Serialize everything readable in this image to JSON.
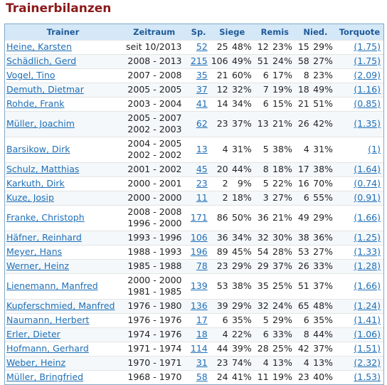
{
  "page_title": "Trainerbilanzen",
  "columns": {
    "trainer": "Trainer",
    "zeitraum": "Zeitraum",
    "sp": "Sp.",
    "siege": "Siege",
    "remis": "Remis",
    "nied": "Nied.",
    "torquote": "Torquote"
  },
  "rows": [
    {
      "name": "Heine, Karsten",
      "periods": [
        "seit 10/2013"
      ],
      "sp": "52",
      "siege": "25",
      "siege_pct": "48%",
      "remis": "12",
      "remis_pct": "23%",
      "nied": "15",
      "nied_pct": "29%",
      "torquote": "(1.75)"
    },
    {
      "name": "Schädlich, Gerd",
      "periods": [
        "2008 - 2013"
      ],
      "sp": "215",
      "siege": "106",
      "siege_pct": "49%",
      "remis": "51",
      "remis_pct": "24%",
      "nied": "58",
      "nied_pct": "27%",
      "torquote": "(1.75)"
    },
    {
      "name": "Vogel, Tino",
      "periods": [
        "2007 - 2008"
      ],
      "sp": "35",
      "siege": "21",
      "siege_pct": "60%",
      "remis": "6",
      "remis_pct": "17%",
      "nied": "8",
      "nied_pct": "23%",
      "torquote": "(2.09)"
    },
    {
      "name": "Demuth, Dietmar",
      "periods": [
        "2005 - 2005"
      ],
      "sp": "37",
      "siege": "12",
      "siege_pct": "32%",
      "remis": "7",
      "remis_pct": "19%",
      "nied": "18",
      "nied_pct": "49%",
      "torquote": "(1.16)"
    },
    {
      "name": "Rohde, Frank",
      "periods": [
        "2003 - 2004"
      ],
      "sp": "41",
      "siege": "14",
      "siege_pct": "34%",
      "remis": "6",
      "remis_pct": "15%",
      "nied": "21",
      "nied_pct": "51%",
      "torquote": "(0.85)"
    },
    {
      "name": "Müller, Joachim",
      "periods": [
        "2005 - 2007",
        "2002 - 2003"
      ],
      "sp": "62",
      "siege": "23",
      "siege_pct": "37%",
      "remis": "13",
      "remis_pct": "21%",
      "nied": "26",
      "nied_pct": "42%",
      "torquote": "(1.35)"
    },
    {
      "name": "Barsikow, Dirk",
      "periods": [
        "2004 - 2005",
        "2002 - 2002"
      ],
      "sp": "13",
      "siege": "4",
      "siege_pct": "31%",
      "remis": "5",
      "remis_pct": "38%",
      "nied": "4",
      "nied_pct": "31%",
      "torquote": "(1)"
    },
    {
      "name": "Schulz, Matthias",
      "periods": [
        "2001 - 2002"
      ],
      "sp": "45",
      "siege": "20",
      "siege_pct": "44%",
      "remis": "8",
      "remis_pct": "18%",
      "nied": "17",
      "nied_pct": "38%",
      "torquote": "(1.64)"
    },
    {
      "name": "Karkuth, Dirk",
      "periods": [
        "2000 - 2001"
      ],
      "sp": "23",
      "siege": "2",
      "siege_pct": "9%",
      "remis": "5",
      "remis_pct": "22%",
      "nied": "16",
      "nied_pct": "70%",
      "torquote": "(0.74)"
    },
    {
      "name": "Kuze, Josip",
      "periods": [
        "2000 - 2000"
      ],
      "sp": "11",
      "siege": "2",
      "siege_pct": "18%",
      "remis": "3",
      "remis_pct": "27%",
      "nied": "6",
      "nied_pct": "55%",
      "torquote": "(0.91)"
    },
    {
      "name": "Franke, Christoph",
      "periods": [
        "2008 - 2008",
        "1996 - 2000"
      ],
      "sp": "171",
      "siege": "86",
      "siege_pct": "50%",
      "remis": "36",
      "remis_pct": "21%",
      "nied": "49",
      "nied_pct": "29%",
      "torquote": "(1.66)"
    },
    {
      "name": "Häfner, Reinhard",
      "periods": [
        "1993 - 1996"
      ],
      "sp": "106",
      "siege": "36",
      "siege_pct": "34%",
      "remis": "32",
      "remis_pct": "30%",
      "nied": "38",
      "nied_pct": "36%",
      "torquote": "(1.25)"
    },
    {
      "name": "Meyer, Hans",
      "periods": [
        "1988 - 1993"
      ],
      "sp": "196",
      "siege": "89",
      "siege_pct": "45%",
      "remis": "54",
      "remis_pct": "28%",
      "nied": "53",
      "nied_pct": "27%",
      "torquote": "(1.33)"
    },
    {
      "name": "Werner, Heinz",
      "periods": [
        "1985 - 1988"
      ],
      "sp": "78",
      "siege": "23",
      "siege_pct": "29%",
      "remis": "29",
      "remis_pct": "37%",
      "nied": "26",
      "nied_pct": "33%",
      "torquote": "(1.28)"
    },
    {
      "name": "Lienemann, Manfred",
      "periods": [
        "2000 - 2000",
        "1981 - 1985"
      ],
      "sp": "139",
      "siege": "53",
      "siege_pct": "38%",
      "remis": "35",
      "remis_pct": "25%",
      "nied": "51",
      "nied_pct": "37%",
      "torquote": "(1.66)"
    },
    {
      "name": "Kupferschmied, Manfred",
      "periods": [
        "1976 - 1980"
      ],
      "sp": "136",
      "siege": "39",
      "siege_pct": "29%",
      "remis": "32",
      "remis_pct": "24%",
      "nied": "65",
      "nied_pct": "48%",
      "torquote": "(1.24)"
    },
    {
      "name": "Naumann, Herbert",
      "periods": [
        "1976 - 1976"
      ],
      "sp": "17",
      "siege": "6",
      "siege_pct": "35%",
      "remis": "5",
      "remis_pct": "29%",
      "nied": "6",
      "nied_pct": "35%",
      "torquote": "(1.41)"
    },
    {
      "name": "Erler, Dieter",
      "periods": [
        "1974 - 1976"
      ],
      "sp": "18",
      "siege": "4",
      "siege_pct": "22%",
      "remis": "6",
      "remis_pct": "33%",
      "nied": "8",
      "nied_pct": "44%",
      "torquote": "(1.06)"
    },
    {
      "name": "Hofmann, Gerhard",
      "periods": [
        "1971 - 1974"
      ],
      "sp": "114",
      "siege": "44",
      "siege_pct": "39%",
      "remis": "28",
      "remis_pct": "25%",
      "nied": "42",
      "nied_pct": "37%",
      "torquote": "(1.51)"
    },
    {
      "name": "Weber, Heinz",
      "periods": [
        "1970 - 1971"
      ],
      "sp": "31",
      "siege": "23",
      "siege_pct": "74%",
      "remis": "4",
      "remis_pct": "13%",
      "nied": "4",
      "nied_pct": "13%",
      "torquote": "(2.32)"
    },
    {
      "name": "Müller, Bringfried",
      "periods": [
        "1968 - 1970"
      ],
      "sp": "58",
      "siege": "24",
      "siege_pct": "41%",
      "remis": "11",
      "remis_pct": "19%",
      "nied": "23",
      "nied_pct": "40%",
      "torquote": "(1.53)"
    }
  ]
}
